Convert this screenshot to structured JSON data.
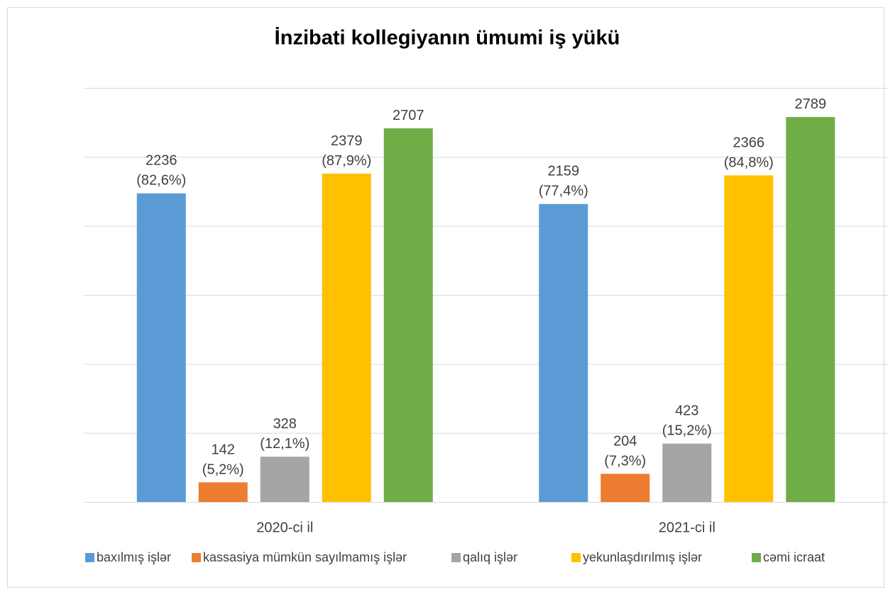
{
  "chart_data": {
    "type": "bar",
    "title": "İnzibati kollegiyanın ümumi iş yükü",
    "categories": [
      "2020-ci il",
      "2021-ci il"
    ],
    "ylim": [
      0,
      3000
    ],
    "yticks": [
      0,
      500,
      1000,
      1500,
      2000,
      2500,
      3000
    ],
    "grid": true,
    "legend": "bottom",
    "series": [
      {
        "name": "baxılmış işlər",
        "color": "#5b9bd5",
        "values": [
          2236,
          2159
        ],
        "value_labels": [
          "2236\n(82,6%)",
          "2159\n(77,4%)"
        ]
      },
      {
        "name": "kassasiya mümkün sayılmamış işlər",
        "color": "#ed7d31",
        "values": [
          142,
          204
        ],
        "value_labels": [
          "142\n(5,2%)",
          "204\n(7,3%)"
        ]
      },
      {
        "name": "qalıq işlər",
        "color": "#a5a5a5",
        "values": [
          328,
          423
        ],
        "value_labels": [
          "328\n(12,1%)",
          "423\n(15,2%)"
        ]
      },
      {
        "name": "yekunlaşdırılmış işlər",
        "color": "#ffc000",
        "values": [
          2379,
          2366
        ],
        "value_labels": [
          "2379\n(87,9%)",
          "2366\n(84,8%)"
        ]
      },
      {
        "name": "cəmi icraat",
        "color": "#70ad47",
        "values": [
          2707,
          2789
        ]
      }
    ]
  }
}
